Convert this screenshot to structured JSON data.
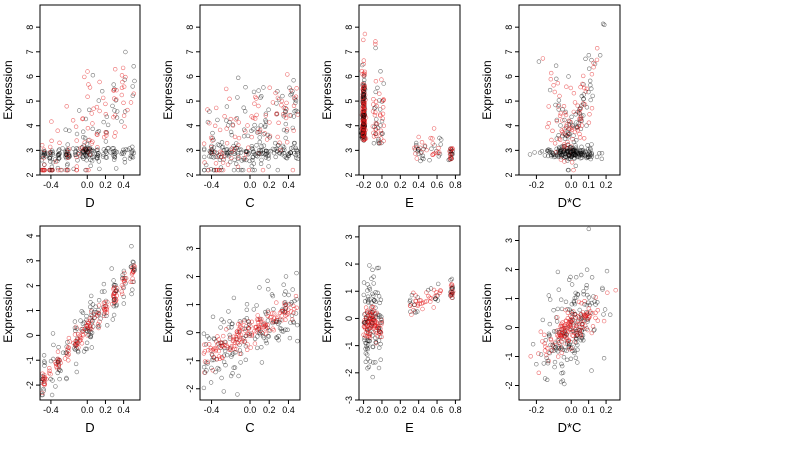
{
  "colors": {
    "black": "#000000",
    "red": "#e41a1c"
  },
  "chart_data": [
    {
      "type": "scatter",
      "xlabel": "D",
      "ylabel": "Expression",
      "xlim": [
        -0.52,
        0.58
      ],
      "ylim": [
        2.0,
        8.9
      ],
      "xticks": [
        -0.4,
        0.0,
        0.2,
        0.4
      ],
      "xtick_labels": [
        "-0.4",
        "0.0",
        "0.2",
        "0.4"
      ],
      "yticks": [
        2,
        3,
        4,
        5,
        6,
        7,
        8
      ],
      "ytick_labels": [
        "2",
        "3",
        "4",
        "5",
        "6",
        "7",
        "8"
      ]
    },
    {
      "type": "scatter",
      "xlabel": "C",
      "ylabel": "Expression",
      "xlim": [
        -0.52,
        0.52
      ],
      "ylim": [
        2.0,
        8.9
      ],
      "xticks": [
        -0.4,
        0.0,
        0.2,
        0.4
      ],
      "xtick_labels": [
        "-0.4",
        "0.0",
        "0.2",
        "0.4"
      ],
      "yticks": [
        2,
        3,
        4,
        5,
        6,
        7,
        8
      ],
      "ytick_labels": [
        "2",
        "3",
        "4",
        "5",
        "6",
        "7",
        "8"
      ]
    },
    {
      "type": "scatter",
      "xlabel": "E",
      "ylabel": "Expression",
      "xlim": [
        -0.25,
        0.85
      ],
      "ylim": [
        2.0,
        8.9
      ],
      "xticks": [
        -0.2,
        0.0,
        0.2,
        0.4,
        0.6,
        0.8
      ],
      "xtick_labels": [
        "-0.2",
        "0.0",
        "0.2",
        "0.4",
        "0.6",
        "0.8"
      ],
      "yticks": [
        2,
        3,
        4,
        5,
        6,
        7,
        8
      ],
      "ytick_labels": [
        "2",
        "3",
        "4",
        "5",
        "6",
        "7",
        "8"
      ]
    },
    {
      "type": "scatter",
      "xlabel": "D*C",
      "ylabel": "Expression",
      "xlim": [
        -0.3,
        0.28
      ],
      "ylim": [
        2.0,
        8.9
      ],
      "xticks": [
        -0.2,
        0.0,
        0.1,
        0.2
      ],
      "xtick_labels": [
        "-0.2",
        "0.0",
        "0.1",
        "0.2"
      ],
      "yticks": [
        2,
        3,
        4,
        5,
        6,
        7,
        8
      ],
      "ytick_labels": [
        "2",
        "3",
        "4",
        "5",
        "6",
        "7",
        "8"
      ]
    },
    {
      "type": "scatter",
      "xlabel": "D",
      "ylabel": "Expression",
      "xlim": [
        -0.52,
        0.58
      ],
      "ylim": [
        -2.6,
        4.4
      ],
      "xticks": [
        -0.4,
        0.0,
        0.2,
        0.4
      ],
      "xtick_labels": [
        "-0.4",
        "0.0",
        "0.2",
        "0.4"
      ],
      "yticks": [
        -2,
        -1,
        0,
        1,
        2,
        3,
        4
      ],
      "ytick_labels": [
        "-2",
        "-1",
        "0",
        "1",
        "2",
        "3",
        "4"
      ]
    },
    {
      "type": "scatter",
      "xlabel": "C",
      "ylabel": "Expression",
      "xlim": [
        -0.52,
        0.52
      ],
      "ylim": [
        -2.4,
        3.8
      ],
      "xticks": [
        -0.4,
        0.0,
        0.2,
        0.4
      ],
      "xtick_labels": [
        "-0.4",
        "0.0",
        "0.2",
        "0.4"
      ],
      "yticks": [
        -2,
        -1,
        0,
        1,
        2,
        3
      ],
      "ytick_labels": [
        "-2",
        "-1",
        "0",
        "1",
        "2",
        "3"
      ]
    },
    {
      "type": "scatter",
      "xlabel": "E",
      "ylabel": "Expression",
      "xlim": [
        -0.25,
        0.85
      ],
      "ylim": [
        -3.0,
        3.4
      ],
      "xticks": [
        -0.2,
        0.0,
        0.2,
        0.4,
        0.6,
        0.8
      ],
      "xtick_labels": [
        "-0.2",
        "0.0",
        "0.2",
        "0.4",
        "0.6",
        "0.8"
      ],
      "yticks": [
        -3,
        -2,
        -1,
        0,
        1,
        2,
        3
      ],
      "ytick_labels": [
        "-3",
        "-2",
        "-1",
        "0",
        "1",
        "2",
        "3"
      ]
    },
    {
      "type": "scatter",
      "xlabel": "D*C",
      "ylabel": "Expression",
      "xlim": [
        -0.3,
        0.28
      ],
      "ylim": [
        -2.5,
        3.5
      ],
      "xticks": [
        -0.2,
        0.0,
        0.1,
        0.2
      ],
      "xtick_labels": [
        "-0.2",
        "0.0",
        "0.1",
        "0.2"
      ],
      "yticks": [
        -2,
        -1,
        0,
        1,
        2,
        3
      ],
      "ytick_labels": [
        "-2",
        "-1",
        "0",
        "1",
        "2",
        "3"
      ]
    }
  ]
}
